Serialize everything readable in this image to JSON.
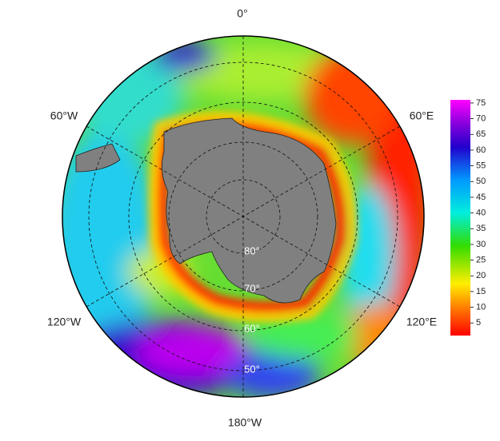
{
  "longitude_labels": [
    "0°",
    "60°E",
    "120°E",
    "180°W",
    "120°W",
    "60°W"
  ],
  "latitude_labels": [
    "80°",
    "70°",
    "60°",
    "50°"
  ],
  "colorbar": {
    "ticks": [
      5,
      10,
      15,
      20,
      25,
      30,
      35,
      40,
      45,
      50,
      55,
      60,
      65,
      70,
      75
    ],
    "clim": [
      1,
      76
    ]
  }
}
